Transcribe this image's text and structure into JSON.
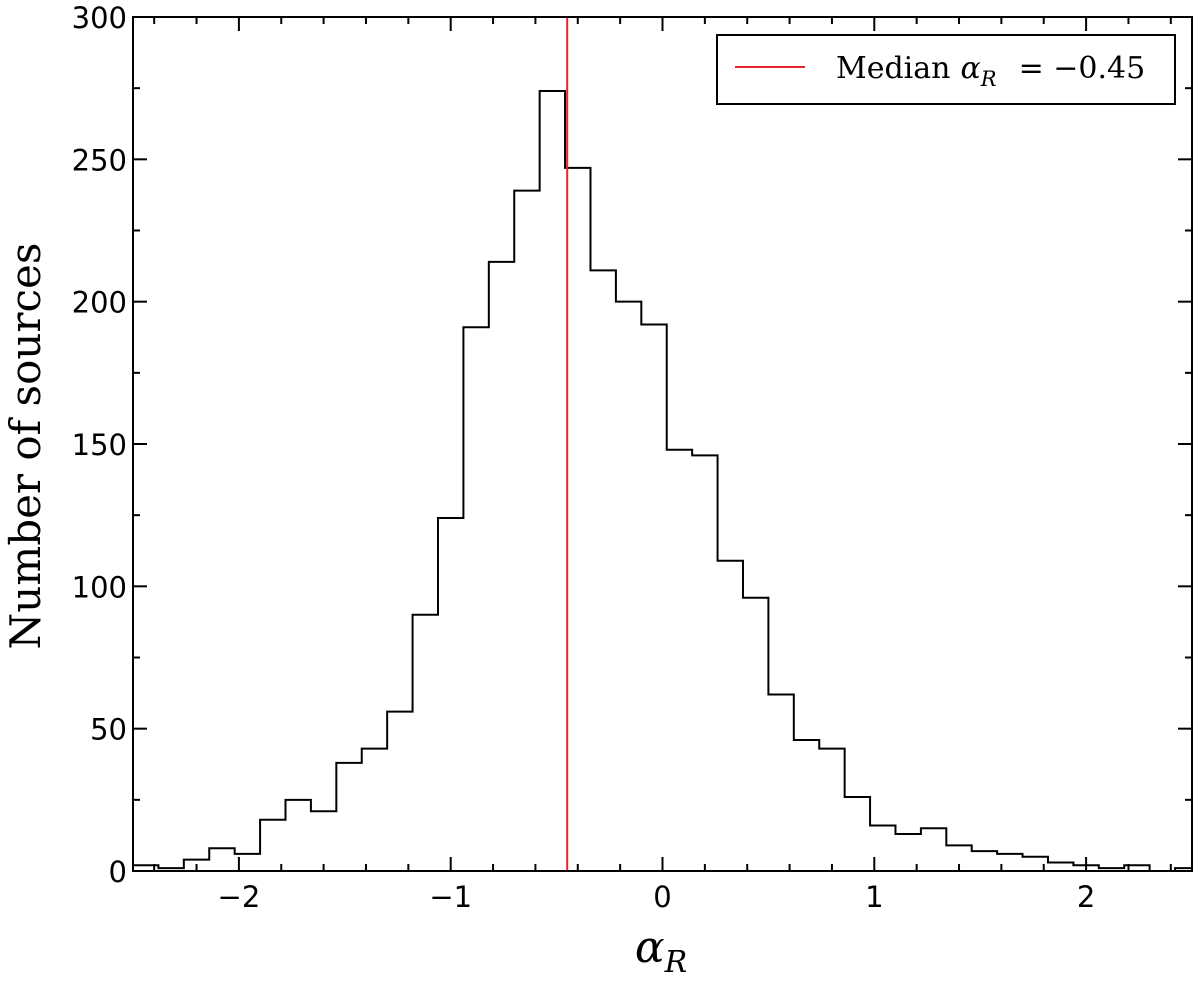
{
  "chart_data": {
    "type": "histogram",
    "xlabel_symbol": "α",
    "xlabel_subscript": "R",
    "ylabel": "Number of sources",
    "xlim": [
      -2.5,
      2.5
    ],
    "ylim": [
      0,
      300
    ],
    "x_ticks": [
      -2,
      -1,
      0,
      1,
      2
    ],
    "x_tick_labels": [
      "−2",
      "−1",
      "0",
      "1",
      "2"
    ],
    "y_ticks": [
      0,
      50,
      100,
      150,
      200,
      250,
      300
    ],
    "y_tick_labels": [
      "0",
      "50",
      "100",
      "150",
      "200",
      "250",
      "300"
    ],
    "bin_width": 0.12,
    "bins": [
      {
        "x0": -2.5,
        "x1": -2.38,
        "count": 2
      },
      {
        "x0": -2.38,
        "x1": -2.26,
        "count": 1
      },
      {
        "x0": -2.26,
        "x1": -2.14,
        "count": 4
      },
      {
        "x0": -2.14,
        "x1": -2.02,
        "count": 8
      },
      {
        "x0": -2.02,
        "x1": -1.9,
        "count": 6
      },
      {
        "x0": -1.9,
        "x1": -1.78,
        "count": 18
      },
      {
        "x0": -1.78,
        "x1": -1.66,
        "count": 25
      },
      {
        "x0": -1.66,
        "x1": -1.54,
        "count": 21
      },
      {
        "x0": -1.54,
        "x1": -1.42,
        "count": 38
      },
      {
        "x0": -1.42,
        "x1": -1.3,
        "count": 43
      },
      {
        "x0": -1.3,
        "x1": -1.18,
        "count": 56
      },
      {
        "x0": -1.18,
        "x1": -1.06,
        "count": 90
      },
      {
        "x0": -1.06,
        "x1": -0.94,
        "count": 124
      },
      {
        "x0": -0.94,
        "x1": -0.82,
        "count": 191
      },
      {
        "x0": -0.82,
        "x1": -0.7,
        "count": 214
      },
      {
        "x0": -0.7,
        "x1": -0.58,
        "count": 239
      },
      {
        "x0": -0.58,
        "x1": -0.46,
        "count": 274
      },
      {
        "x0": -0.46,
        "x1": -0.34,
        "count": 247
      },
      {
        "x0": -0.34,
        "x1": -0.22,
        "count": 211
      },
      {
        "x0": -0.22,
        "x1": -0.1,
        "count": 200
      },
      {
        "x0": -0.1,
        "x1": 0.02,
        "count": 192
      },
      {
        "x0": 0.02,
        "x1": 0.14,
        "count": 148
      },
      {
        "x0": 0.14,
        "x1": 0.26,
        "count": 146
      },
      {
        "x0": 0.26,
        "x1": 0.38,
        "count": 109
      },
      {
        "x0": 0.38,
        "x1": 0.5,
        "count": 96
      },
      {
        "x0": 0.5,
        "x1": 0.62,
        "count": 62
      },
      {
        "x0": 0.62,
        "x1": 0.74,
        "count": 46
      },
      {
        "x0": 0.74,
        "x1": 0.86,
        "count": 43
      },
      {
        "x0": 0.86,
        "x1": 0.98,
        "count": 26
      },
      {
        "x0": 0.98,
        "x1": 1.1,
        "count": 16
      },
      {
        "x0": 1.1,
        "x1": 1.22,
        "count": 13
      },
      {
        "x0": 1.22,
        "x1": 1.34,
        "count": 15
      },
      {
        "x0": 1.34,
        "x1": 1.46,
        "count": 9
      },
      {
        "x0": 1.46,
        "x1": 1.58,
        "count": 7
      },
      {
        "x0": 1.58,
        "x1": 1.7,
        "count": 6
      },
      {
        "x0": 1.7,
        "x1": 1.82,
        "count": 5
      },
      {
        "x0": 1.82,
        "x1": 1.94,
        "count": 3
      },
      {
        "x0": 1.94,
        "x1": 2.06,
        "count": 2
      },
      {
        "x0": 2.06,
        "x1": 2.18,
        "count": 1
      },
      {
        "x0": 2.18,
        "x1": 2.3,
        "count": 2
      },
      {
        "x0": 2.3,
        "x1": 2.42,
        "count": 0
      },
      {
        "x0": 2.42,
        "x1": 2.5,
        "count": 1
      }
    ],
    "median": {
      "value": -0.45,
      "label_text": "Median",
      "label_symbol": "α",
      "label_subscript": "R",
      "label_value": "= −0.45",
      "color": "#e8262a"
    },
    "hist_color": "#000000",
    "legend_position": "top-right",
    "grid": false
  }
}
